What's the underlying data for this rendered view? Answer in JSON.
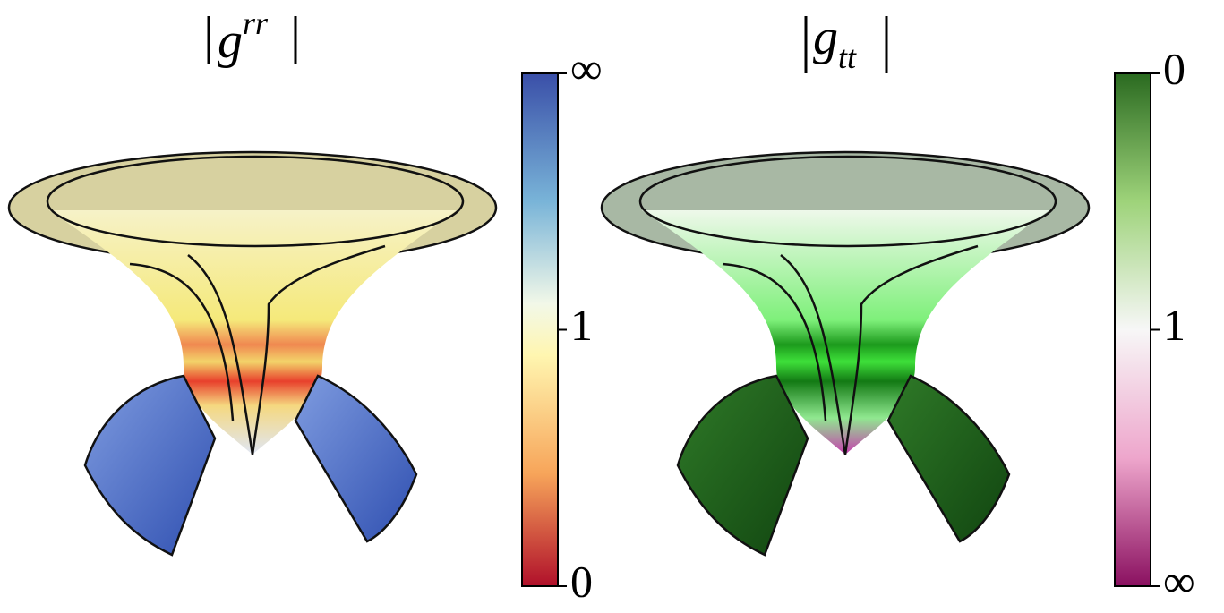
{
  "panels": [
    {
      "title": {
        "base": "g",
        "superscript": "rr"
      },
      "colorbar": {
        "ticks": [
          "∞",
          "1",
          "0"
        ]
      }
    },
    {
      "title": {
        "base": "g",
        "subscript": "tt"
      },
      "colorbar": {
        "ticks": [
          "0",
          "1",
          "∞"
        ]
      }
    }
  ]
}
